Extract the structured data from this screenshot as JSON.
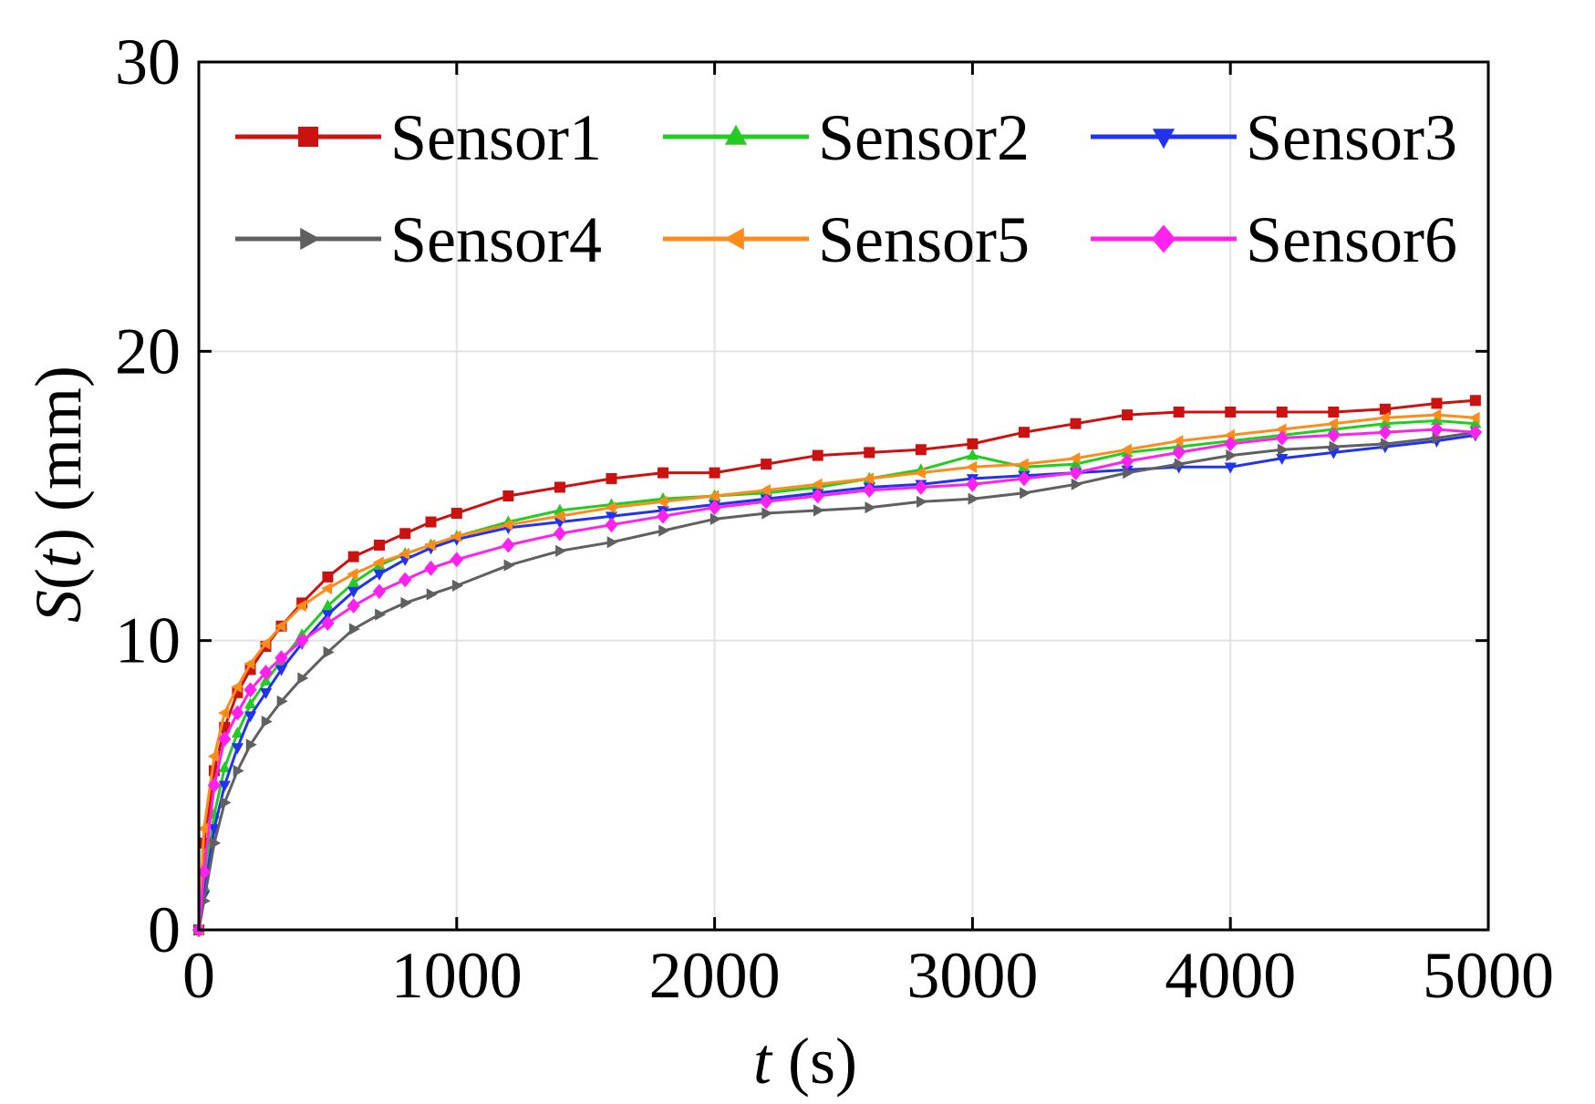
{
  "chart_data": {
    "type": "line",
    "title": "",
    "xlabel": {
      "var": "t",
      "unit": " (s)"
    },
    "ylabel": {
      "var": "S",
      "mid": "(",
      "arg": "t",
      "unit": ") (mm)"
    },
    "xlim": [
      0,
      5000
    ],
    "ylim": [
      0,
      30
    ],
    "xticks": [
      0,
      1000,
      2000,
      3000,
      4000,
      5000
    ],
    "yticks": [
      0,
      10,
      20,
      30
    ],
    "grid": true,
    "legend_position": "top",
    "x": [
      0,
      20,
      60,
      100,
      150,
      200,
      260,
      320,
      400,
      500,
      600,
      700,
      800,
      900,
      1000,
      1200,
      1400,
      1600,
      1800,
      2000,
      2200,
      2400,
      2600,
      2800,
      3000,
      3200,
      3400,
      3600,
      3800,
      4000,
      4200,
      4400,
      4600,
      4800,
      4950
    ],
    "series": [
      {
        "name": "Sensor1",
        "color": "#cc1111",
        "marker": "square",
        "values": [
          0,
          3.0,
          5.5,
          7.0,
          8.2,
          9.0,
          9.8,
          10.5,
          11.3,
          12.2,
          12.9,
          13.3,
          13.7,
          14.1,
          14.4,
          15.0,
          15.3,
          15.6,
          15.8,
          15.8,
          16.1,
          16.4,
          16.5,
          16.6,
          16.8,
          17.2,
          17.5,
          17.8,
          17.9,
          17.9,
          17.9,
          17.9,
          18.0,
          18.2,
          18.3
        ]
      },
      {
        "name": "Sensor2",
        "color": "#22cc22",
        "marker": "triangle-up",
        "values": [
          0,
          1.5,
          4.0,
          5.6,
          6.8,
          7.8,
          8.6,
          9.3,
          10.2,
          11.2,
          12.0,
          12.6,
          13.0,
          13.3,
          13.6,
          14.1,
          14.5,
          14.7,
          14.9,
          15.0,
          15.1,
          15.3,
          15.6,
          15.9,
          16.4,
          16.0,
          16.1,
          16.5,
          16.7,
          16.9,
          17.1,
          17.3,
          17.5,
          17.6,
          17.5
        ]
      },
      {
        "name": "Sensor3",
        "color": "#2233ee",
        "marker": "triangle-down",
        "values": [
          0,
          1.2,
          3.5,
          5.0,
          6.3,
          7.4,
          8.2,
          9.0,
          9.9,
          10.9,
          11.7,
          12.3,
          12.8,
          13.2,
          13.5,
          13.9,
          14.1,
          14.3,
          14.5,
          14.7,
          14.9,
          15.1,
          15.3,
          15.4,
          15.6,
          15.7,
          15.8,
          15.9,
          16.0,
          16.0,
          16.3,
          16.5,
          16.7,
          16.9,
          17.1
        ]
      },
      {
        "name": "Sensor4",
        "color": "#606060",
        "marker": "triangle-right",
        "values": [
          0,
          1.0,
          3.0,
          4.4,
          5.5,
          6.4,
          7.2,
          7.9,
          8.7,
          9.6,
          10.4,
          10.9,
          11.3,
          11.6,
          11.9,
          12.6,
          13.1,
          13.4,
          13.8,
          14.2,
          14.4,
          14.5,
          14.6,
          14.8,
          14.9,
          15.1,
          15.4,
          15.8,
          16.1,
          16.4,
          16.6,
          16.7,
          16.8,
          17.0,
          17.2
        ]
      },
      {
        "name": "Sensor5",
        "color": "#ff8c1a",
        "marker": "triangle-left",
        "values": [
          0,
          3.5,
          6.0,
          7.5,
          8.4,
          9.2,
          9.9,
          10.5,
          11.2,
          11.8,
          12.3,
          12.7,
          13.0,
          13.3,
          13.6,
          14.0,
          14.3,
          14.6,
          14.8,
          15.0,
          15.2,
          15.4,
          15.6,
          15.8,
          16.0,
          16.1,
          16.3,
          16.6,
          16.9,
          17.1,
          17.3,
          17.5,
          17.7,
          17.8,
          17.7
        ]
      },
      {
        "name": "Sensor6",
        "color": "#ff22ee",
        "marker": "diamond",
        "values": [
          0,
          2.0,
          5.0,
          6.6,
          7.5,
          8.3,
          8.9,
          9.4,
          10.0,
          10.6,
          11.2,
          11.7,
          12.1,
          12.5,
          12.8,
          13.3,
          13.7,
          14.0,
          14.3,
          14.6,
          14.8,
          15.0,
          15.2,
          15.3,
          15.4,
          15.6,
          15.8,
          16.2,
          16.5,
          16.8,
          17.0,
          17.1,
          17.2,
          17.3,
          17.2
        ]
      }
    ]
  }
}
